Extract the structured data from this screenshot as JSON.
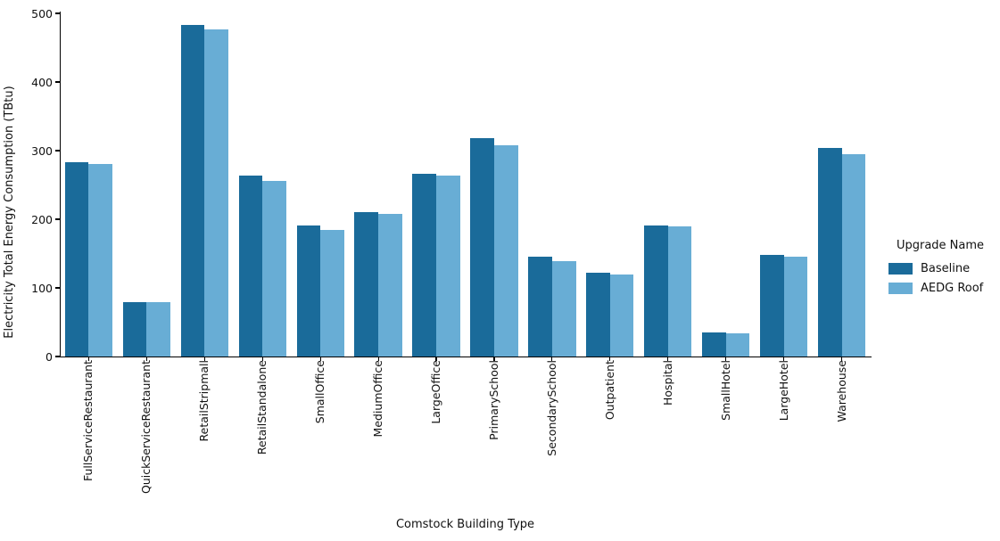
{
  "chart_data": {
    "type": "bar",
    "title": "",
    "xlabel": "Comstock Building Type",
    "ylabel": "Electricity Total Energy Consumption (TBtu)",
    "ylim": [
      0,
      500
    ],
    "yticks": [
      0,
      100,
      200,
      300,
      400,
      500
    ],
    "grid": false,
    "legend_position": "right-outside",
    "legend_title": "Upgrade Name",
    "categories": [
      "FullServiceRestaurant",
      "QuickServiceRestaurant",
      "RetailStripmall",
      "RetailStandalone",
      "SmallOffice",
      "MediumOffice",
      "LargeOffice",
      "PrimarySchool",
      "SecondarySchool",
      "Outpatient",
      "Hospital",
      "SmallHotel",
      "LargeHotel",
      "Warehouse"
    ],
    "series": [
      {
        "name": "Baseline",
        "color": "#1a6b9a",
        "values": [
          283,
          79,
          483,
          263,
          191,
          211,
          266,
          318,
          145,
          122,
          191,
          35,
          148,
          304
        ]
      },
      {
        "name": "AEDG Roof",
        "color": "#68add5",
        "values": [
          280,
          79,
          476,
          256,
          185,
          208,
          264,
          308,
          139,
          120,
          189,
          34,
          146,
          295
        ]
      }
    ]
  }
}
